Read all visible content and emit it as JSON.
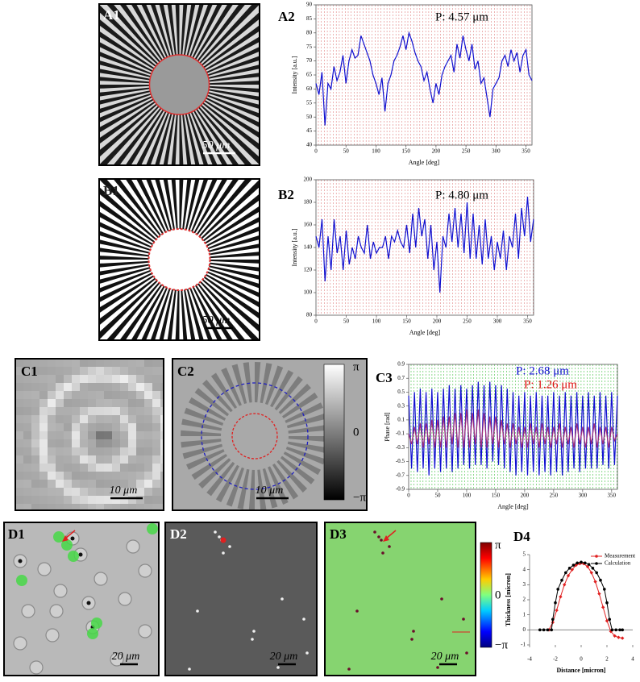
{
  "panels": [
    {
      "label": "A1",
      "scale": "50 μm"
    },
    {
      "label": "B1",
      "scale": "50 μm"
    },
    {
      "label": "C1",
      "scale": "10 μm"
    },
    {
      "label": "C2",
      "scale": "10 μm",
      "colorbar": [
        "π",
        "0",
        "−π"
      ]
    },
    {
      "label": "D1",
      "scale": "20 μm"
    },
    {
      "label": "D2",
      "scale": "20 μm"
    },
    {
      "label": "D3",
      "scale": "20 μm",
      "colorbar": [
        "π",
        "0",
        "−π"
      ]
    }
  ],
  "chart_data": [
    {
      "type": "line",
      "panel_label": "A2",
      "xlabel": "Angle [deg]",
      "ylabel": "Intensity [a.u.]",
      "annotations": [
        {
          "text": "P: 4.57 μm",
          "color": "#000000"
        }
      ],
      "x": [
        0,
        5,
        10,
        15,
        20,
        25,
        30,
        35,
        40,
        45,
        50,
        55,
        60,
        65,
        70,
        75,
        80,
        85,
        90,
        95,
        100,
        105,
        110,
        115,
        120,
        125,
        130,
        135,
        140,
        145,
        150,
        155,
        160,
        165,
        170,
        175,
        180,
        185,
        190,
        195,
        200,
        205,
        210,
        215,
        220,
        225,
        230,
        235,
        240,
        245,
        250,
        255,
        260,
        265,
        270,
        275,
        280,
        285,
        290,
        295,
        300,
        305,
        310,
        315,
        320,
        325,
        330,
        335,
        340,
        345,
        350,
        355,
        360
      ],
      "series": [
        {
          "color": "#1010d0",
          "values": [
            62,
            58,
            66,
            47,
            62,
            60,
            68,
            63,
            66,
            72,
            62,
            70,
            74,
            71,
            72,
            79,
            76,
            73,
            70,
            65,
            62,
            58,
            64,
            52,
            62,
            65,
            70,
            72,
            75,
            79,
            74,
            80,
            77,
            73,
            70,
            68,
            63,
            66,
            60,
            55,
            62,
            58,
            65,
            68,
            70,
            72,
            66,
            76,
            71,
            79,
            74,
            70,
            76,
            67,
            70,
            62,
            64,
            57,
            50,
            60,
            62,
            64,
            70,
            72,
            68,
            74,
            70,
            73,
            66,
            72,
            74,
            65,
            63
          ]
        }
      ],
      "xlim": [
        0,
        360
      ],
      "xticks": [
        0,
        50,
        100,
        150,
        200,
        250,
        300,
        350
      ],
      "ylim": [
        40,
        90
      ],
      "yticks": [
        40,
        45,
        50,
        55,
        60,
        65,
        70,
        75,
        80,
        85,
        90
      ],
      "guide_color": "#e08080"
    },
    {
      "type": "line",
      "panel_label": "B2",
      "xlabel": "Angle [deg]",
      "ylabel": "Intensity [a.u.]",
      "annotations": [
        {
          "text": "P: 4.80 μm",
          "color": "#000000"
        }
      ],
      "x": [
        0,
        5,
        10,
        15,
        20,
        25,
        30,
        35,
        40,
        45,
        50,
        55,
        60,
        65,
        70,
        75,
        80,
        85,
        90,
        95,
        100,
        105,
        110,
        115,
        120,
        125,
        130,
        135,
        140,
        145,
        150,
        155,
        160,
        165,
        170,
        175,
        180,
        185,
        190,
        195,
        200,
        205,
        210,
        215,
        220,
        225,
        230,
        235,
        240,
        245,
        250,
        255,
        260,
        265,
        270,
        275,
        280,
        285,
        290,
        295,
        300,
        305,
        310,
        315,
        320,
        325,
        330,
        335,
        340,
        345,
        350,
        355,
        360
      ],
      "series": [
        {
          "color": "#1010d0",
          "values": [
            150,
            140,
            165,
            110,
            150,
            120,
            165,
            135,
            150,
            120,
            155,
            125,
            140,
            130,
            150,
            140,
            135,
            160,
            130,
            145,
            135,
            140,
            140,
            150,
            130,
            150,
            145,
            155,
            145,
            140,
            160,
            135,
            170,
            140,
            175,
            150,
            165,
            130,
            160,
            120,
            145,
            100,
            150,
            140,
            170,
            145,
            175,
            140,
            170,
            135,
            180,
            130,
            170,
            130,
            160,
            125,
            165,
            130,
            150,
            120,
            145,
            130,
            155,
            120,
            150,
            140,
            170,
            130,
            175,
            150,
            185,
            145,
            165
          ]
        }
      ],
      "xlim": [
        0,
        360
      ],
      "xticks": [
        0,
        50,
        100,
        150,
        200,
        250,
        300,
        350
      ],
      "ylim": [
        80,
        200
      ],
      "yticks": [
        80,
        100,
        120,
        140,
        160,
        180,
        200
      ],
      "guide_color": "#e08080"
    },
    {
      "type": "line",
      "panel_label": "C3",
      "xlabel": "Angle [deg]",
      "ylabel": "Phase [rad]",
      "annotations": [
        {
          "text": "P: 2.68 μm",
          "color": "#1010d0"
        },
        {
          "text": "P: 1.26 μm",
          "color": "#e01010"
        }
      ],
      "x": [
        0,
        5,
        10,
        15,
        20,
        25,
        30,
        35,
        40,
        45,
        50,
        55,
        60,
        65,
        70,
        75,
        80,
        85,
        90,
        95,
        100,
        105,
        110,
        115,
        120,
        125,
        130,
        135,
        140,
        145,
        150,
        155,
        160,
        165,
        170,
        175,
        180,
        185,
        190,
        195,
        200,
        205,
        210,
        215,
        220,
        225,
        230,
        235,
        240,
        245,
        250,
        255,
        260,
        265,
        270,
        275,
        280,
        285,
        290,
        295,
        300,
        305,
        310,
        315,
        320,
        325,
        330,
        335,
        340,
        345,
        350,
        355,
        360
      ],
      "series": [
        {
          "color": "#1010d0",
          "values": [
            0.45,
            -0.6,
            0.5,
            -0.65,
            0.55,
            -0.6,
            0.5,
            -0.7,
            0.55,
            -0.6,
            0.5,
            -0.65,
            0.55,
            -0.6,
            0.6,
            -0.65,
            0.55,
            -0.6,
            0.6,
            -0.55,
            0.55,
            -0.6,
            0.6,
            -0.55,
            0.65,
            -0.55,
            0.6,
            -0.6,
            0.65,
            -0.5,
            0.6,
            -0.55,
            0.6,
            -0.6,
            0.55,
            -0.65,
            0.5,
            -0.7,
            0.45,
            -0.65,
            0.5,
            -0.7,
            0.45,
            -0.65,
            0.5,
            -0.7,
            0.45,
            -0.65,
            0.45,
            -0.7,
            0.5,
            -0.65,
            0.45,
            -0.7,
            0.5,
            -0.65,
            0.45,
            -0.6,
            0.5,
            -0.65,
            0.45,
            -0.6,
            0.5,
            -0.6,
            0.45,
            -0.6,
            0.5,
            -0.55,
            0.45,
            -0.6,
            0.5,
            -0.55,
            0.45
          ]
        },
        {
          "color": "#a02c78",
          "values": [
            -0.1,
            -0.25,
            0.0,
            -0.25,
            0.05,
            -0.3,
            0.05,
            -0.25,
            0.1,
            -0.3,
            0.1,
            -0.3,
            0.15,
            -0.3,
            0.15,
            -0.25,
            0.2,
            -0.3,
            0.2,
            -0.3,
            0.25,
            -0.3,
            0.2,
            -0.25,
            0.25,
            -0.3,
            0.2,
            -0.3,
            0.15,
            -0.25,
            0.15,
            -0.3,
            0.1,
            -0.25,
            0.05,
            -0.3,
            0.05,
            -0.25,
            0.0,
            -0.3,
            0.0,
            -0.3,
            0.05,
            -0.25,
            0.0,
            -0.3,
            0.05,
            -0.25,
            0.0,
            -0.3,
            0.0,
            -0.25,
            0.05,
            -0.3,
            0.0,
            -0.25,
            0.0,
            -0.3,
            0.05,
            -0.25,
            0.0,
            -0.3,
            0.0,
            -0.25,
            0.05,
            -0.3,
            0.0,
            -0.25,
            0.0,
            -0.3,
            0.0,
            -0.2,
            -0.1
          ]
        }
      ],
      "xlim": [
        0,
        360
      ],
      "xticks": [
        0,
        50,
        100,
        150,
        200,
        250,
        300,
        350
      ],
      "ylim": [
        -0.9,
        0.9
      ],
      "yticks": [
        -0.9,
        -0.7,
        -0.5,
        -0.3,
        -0.1,
        0.1,
        0.3,
        0.5,
        0.7,
        0.9
      ],
      "guide_color": "#40c040"
    },
    {
      "type": "line",
      "panel_label": "D4",
      "xlabel": "Distance [micron]",
      "ylabel": "Thickness [micron]",
      "legend": "top-right",
      "series": [
        {
          "name": "Measurement",
          "color": "#e02020",
          "marker": "diamond",
          "x": [
            -2.5,
            -2.2,
            -1.9,
            -1.6,
            -1.3,
            -1.0,
            -0.7,
            -0.4,
            -0.1,
            0.2,
            0.5,
            0.8,
            1.1,
            1.4,
            1.7,
            2.0,
            2.3,
            2.6,
            2.9,
            3.2
          ],
          "values": [
            0,
            0.5,
            1.3,
            2.2,
            3.0,
            3.6,
            4.0,
            4.3,
            4.4,
            4.4,
            4.2,
            3.8,
            3.2,
            2.4,
            1.5,
            0.6,
            -0.1,
            -0.4,
            -0.5,
            -0.55
          ]
        },
        {
          "name": "Calculation",
          "color": "#000000",
          "marker": "circle",
          "x": [
            -3.2,
            -2.9,
            -2.6,
            -2.3,
            -2.2,
            -2.0,
            -1.8,
            -1.5,
            -1.2,
            -0.9,
            -0.6,
            -0.3,
            0,
            0.3,
            0.6,
            0.9,
            1.2,
            1.5,
            1.8,
            2.0,
            2.2,
            2.4,
            2.7,
            3.0,
            3.2
          ],
          "values": [
            0,
            0,
            0,
            0,
            0.7,
            1.8,
            2.7,
            3.3,
            3.8,
            4.1,
            4.3,
            4.45,
            4.5,
            4.45,
            4.35,
            4.1,
            3.8,
            3.3,
            2.7,
            1.8,
            0.7,
            0,
            0,
            0,
            0
          ]
        }
      ],
      "xlim": [
        -4,
        4
      ],
      "xticks": [
        -4,
        -2,
        0,
        2,
        4
      ],
      "ylim": [
        -1,
        5
      ],
      "yticks": [
        -1,
        0,
        1,
        2,
        3,
        4,
        5
      ]
    }
  ]
}
